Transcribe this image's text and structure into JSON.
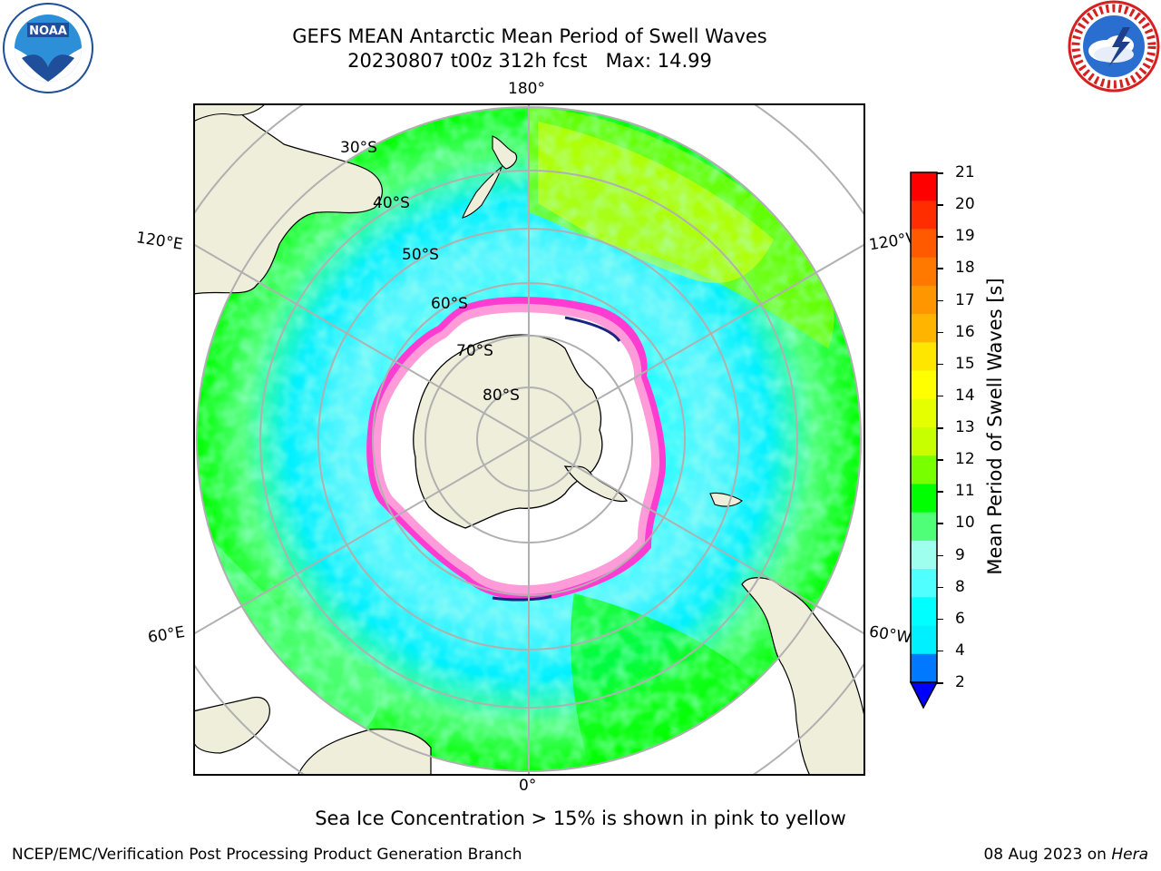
{
  "title": {
    "line1": "GEFS MEAN Antarctic Mean Period of Swell Waves",
    "line2": "20230807 t00z 312h fcst   Max: 14.99"
  },
  "map": {
    "projection": "south-polar-stereographic",
    "longitude_labels": {
      "top": "180°",
      "bottom": "0°",
      "upper_left": "120°E",
      "upper_right": "120°W",
      "lower_left": "60°E",
      "lower_right": "60°W"
    },
    "latitude_labels": [
      "30°S",
      "40°S",
      "50°S",
      "60°S",
      "70°S",
      "80°S"
    ],
    "colors": {
      "land": "#efeedb",
      "ocean_open": "#ffffff",
      "gridline": "#b0b0b0",
      "coastline": "#000000",
      "sea_ice_edge": [
        "#ff3cd2",
        "#ff9bd8",
        "#ffa530",
        "#ffe98a"
      ]
    }
  },
  "colorbar": {
    "label": "Mean Period of Swell Waves [s]",
    "ticks": [
      "21",
      "20",
      "19",
      "18",
      "17",
      "16",
      "15",
      "14",
      "13",
      "12",
      "11",
      "10",
      "9",
      "8",
      "6",
      "4",
      "2"
    ],
    "colors": [
      "#ff0000",
      "#ff2d00",
      "#ff5a00",
      "#ff7800",
      "#ff9600",
      "#ffb400",
      "#ffe600",
      "#ffff00",
      "#e6ff00",
      "#c8ff00",
      "#78ff00",
      "#00ff00",
      "#50ff78",
      "#9fffee",
      "#50ffff",
      "#00ffff",
      "#00f0ff",
      "#0078ff"
    ],
    "extend_color": "#0000ff"
  },
  "footnote": "Sea Ice Concentration > 15% is shown in pink to yellow",
  "footer": {
    "left": "NCEP/EMC/Verification Post Processing Product Generation Branch",
    "right_prefix": "08 Aug 2023 on ",
    "right_host": "Hera"
  }
}
